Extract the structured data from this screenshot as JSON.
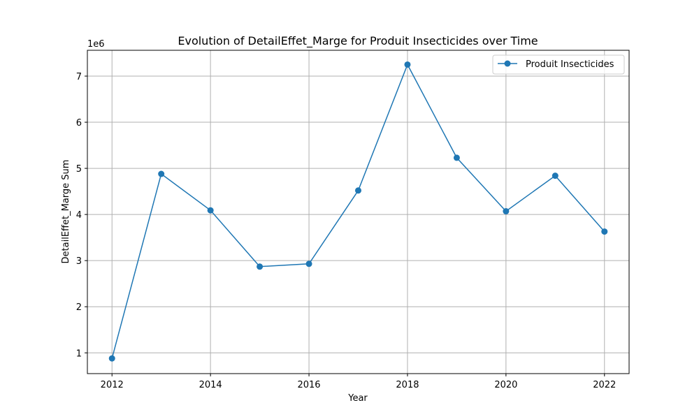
{
  "chart_data": {
    "type": "line",
    "title": "Evolution of DetailEffet_Marge for Produit Insecticides over Time",
    "xlabel": "Year",
    "ylabel": "DetailEffet_Marge Sum",
    "y_offset_label": "1e6",
    "x_ticks": [
      "2012",
      "2014",
      "2016",
      "2018",
      "2020",
      "2022"
    ],
    "y_ticks": [
      "1",
      "2",
      "3",
      "4",
      "5",
      "6",
      "7"
    ],
    "xlim": [
      2011.5,
      2022.5
    ],
    "ylim": [
      550000,
      7560000
    ],
    "grid": true,
    "legend_position": "top-right",
    "color": "#1f77b4",
    "series": [
      {
        "name": "Produit Insecticides",
        "x": [
          2012,
          2013,
          2014,
          2015,
          2016,
          2017,
          2018,
          2019,
          2020,
          2021,
          2022
        ],
        "y": [
          880000,
          4880000,
          4090000,
          2870000,
          2930000,
          4520000,
          7250000,
          5230000,
          4070000,
          4840000,
          3630000
        ]
      }
    ]
  }
}
